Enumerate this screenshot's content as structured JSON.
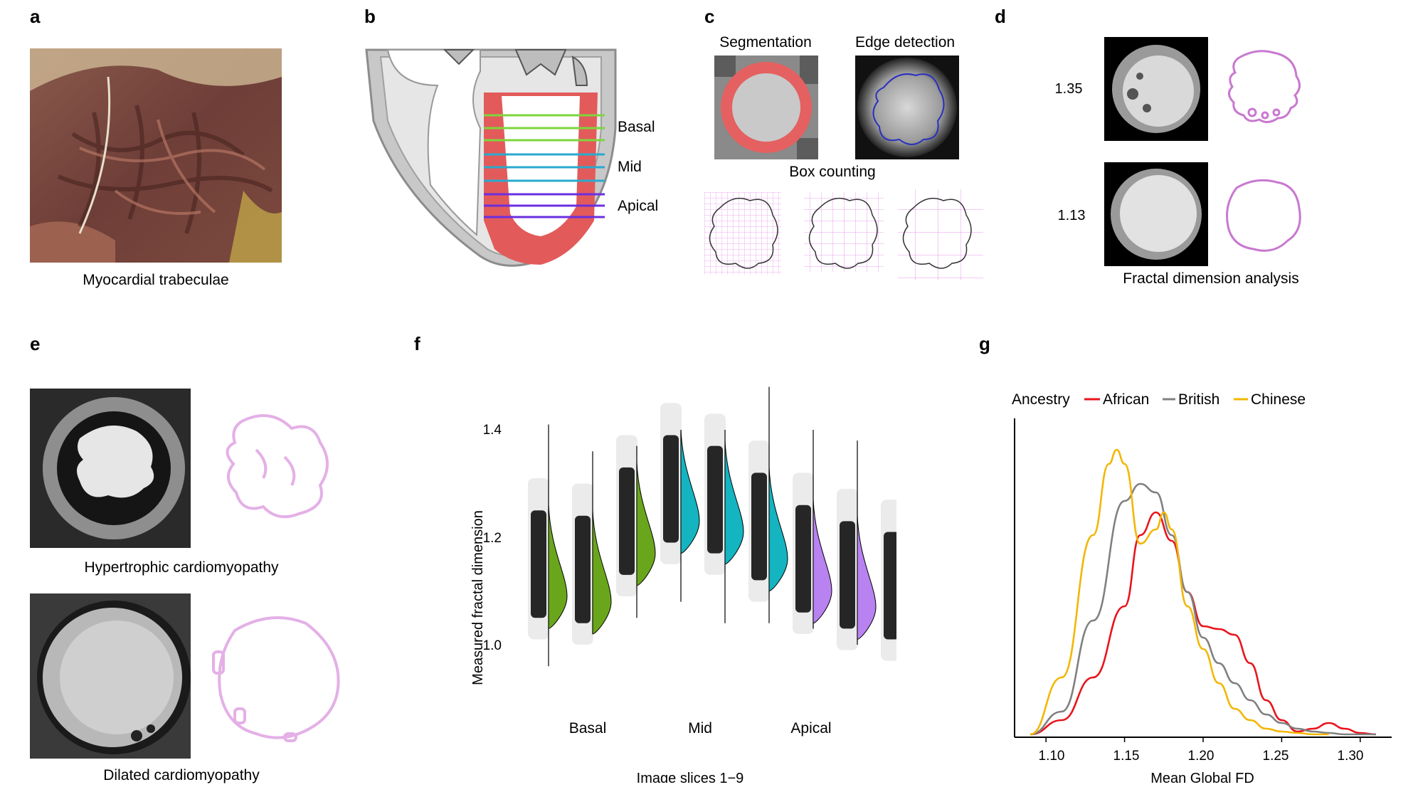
{
  "panels": {
    "a": {
      "letter": "a",
      "caption": "Myocardial trabeculae"
    },
    "b": {
      "letter": "b",
      "labels": [
        "Basal",
        "Mid",
        "Apical"
      ]
    },
    "c": {
      "letter": "c",
      "seg_title": "Segmentation",
      "edge_title": "Edge detection",
      "box_title": "Box counting"
    },
    "d": {
      "letter": "d",
      "values": [
        "1.35",
        "1.13"
      ],
      "caption": "Fractal dimension analysis"
    },
    "e": {
      "letter": "e",
      "caption_top": "Hypertrophic cardiomyopathy",
      "caption_bottom": "Dilated cardiomyopathy"
    },
    "f": {
      "letter": "f",
      "ylabel": "Measured fractal dimension",
      "xlabel": "Image slices 1−9",
      "groups": [
        "Basal",
        "Mid",
        "Apical"
      ],
      "yticks": [
        "1.0",
        "1.2",
        "1.4"
      ]
    },
    "g": {
      "letter": "g",
      "legend_title": "Ancestry",
      "legend": [
        "African",
        "British",
        "Chinese"
      ],
      "xlabel": "Mean Global FD",
      "xticks": [
        "1.10",
        "1.15",
        "1.20",
        "1.25",
        "1.30"
      ]
    }
  },
  "colors": {
    "african": "#e8141c",
    "british": "#808080",
    "chinese": "#f2b705",
    "basal": "#6aa61c",
    "mid": "#14b4c0",
    "apical": "#b882f0",
    "myocardium": "#e05a5a",
    "outline_pink": "#c878d0"
  },
  "chart_data": [
    {
      "type": "violin",
      "panel": "f",
      "ylabel": "Measured fractal dimension",
      "xlabel": "Image slices 1−9",
      "ylim": [
        0.95,
        1.5
      ],
      "categories": [
        "1",
        "2",
        "3",
        "4",
        "5",
        "6",
        "7",
        "8",
        "9"
      ],
      "groups": [
        {
          "name": "Basal",
          "slices": [
            1,
            2,
            3
          ]
        },
        {
          "name": "Mid",
          "slices": [
            4,
            5,
            6
          ]
        },
        {
          "name": "Apical",
          "slices": [
            7,
            8,
            9
          ]
        }
      ],
      "medians": [
        1.11,
        1.1,
        1.19,
        1.25,
        1.23,
        1.18,
        1.12,
        1.09,
        1.07
      ],
      "min": [
        0.96,
        1.02,
        1.05,
        1.08,
        1.04,
        1.04,
        1.03,
        1.0,
        0.92
      ],
      "max": [
        1.41,
        1.36,
        1.37,
        1.4,
        1.4,
        1.48,
        1.4,
        1.38,
        1.37
      ]
    },
    {
      "type": "line",
      "panel": "g",
      "xlabel": "Mean Global FD",
      "xlim": [
        1.08,
        1.32
      ],
      "legend_title": "Ancestry",
      "legend_position": "top",
      "series": [
        {
          "name": "African",
          "x": [
            1.09,
            1.11,
            1.13,
            1.15,
            1.16,
            1.17,
            1.18,
            1.19,
            1.2,
            1.21,
            1.22,
            1.23,
            1.24,
            1.25,
            1.26,
            1.27,
            1.28,
            1.29,
            1.3,
            1.31
          ],
          "y": [
            0.0,
            0.05,
            0.2,
            0.45,
            0.7,
            0.78,
            0.68,
            0.5,
            0.38,
            0.37,
            0.35,
            0.25,
            0.12,
            0.05,
            0.01,
            0.02,
            0.04,
            0.02,
            0.005,
            0.0
          ]
        },
        {
          "name": "British",
          "x": [
            1.09,
            1.11,
            1.13,
            1.15,
            1.16,
            1.17,
            1.18,
            1.19,
            1.2,
            1.21,
            1.22,
            1.23,
            1.24,
            1.25,
            1.26,
            1.27,
            1.28,
            1.29,
            1.3,
            1.31
          ],
          "y": [
            0.0,
            0.08,
            0.4,
            0.82,
            0.88,
            0.85,
            0.7,
            0.5,
            0.34,
            0.25,
            0.18,
            0.12,
            0.07,
            0.04,
            0.02,
            0.01,
            0.005,
            0.0,
            0.0,
            0.0
          ]
        },
        {
          "name": "Chinese",
          "x": [
            1.09,
            1.11,
            1.13,
            1.14,
            1.145,
            1.15,
            1.16,
            1.17,
            1.175,
            1.18,
            1.19,
            1.2,
            1.21,
            1.22,
            1.23,
            1.24,
            1.25,
            1.26,
            1.27,
            1.28
          ],
          "y": [
            0.0,
            0.2,
            0.7,
            0.95,
            1.0,
            0.95,
            0.67,
            0.72,
            0.78,
            0.72,
            0.45,
            0.3,
            0.18,
            0.09,
            0.05,
            0.02,
            0.01,
            0.005,
            0.0,
            0.0
          ]
        }
      ]
    }
  ]
}
